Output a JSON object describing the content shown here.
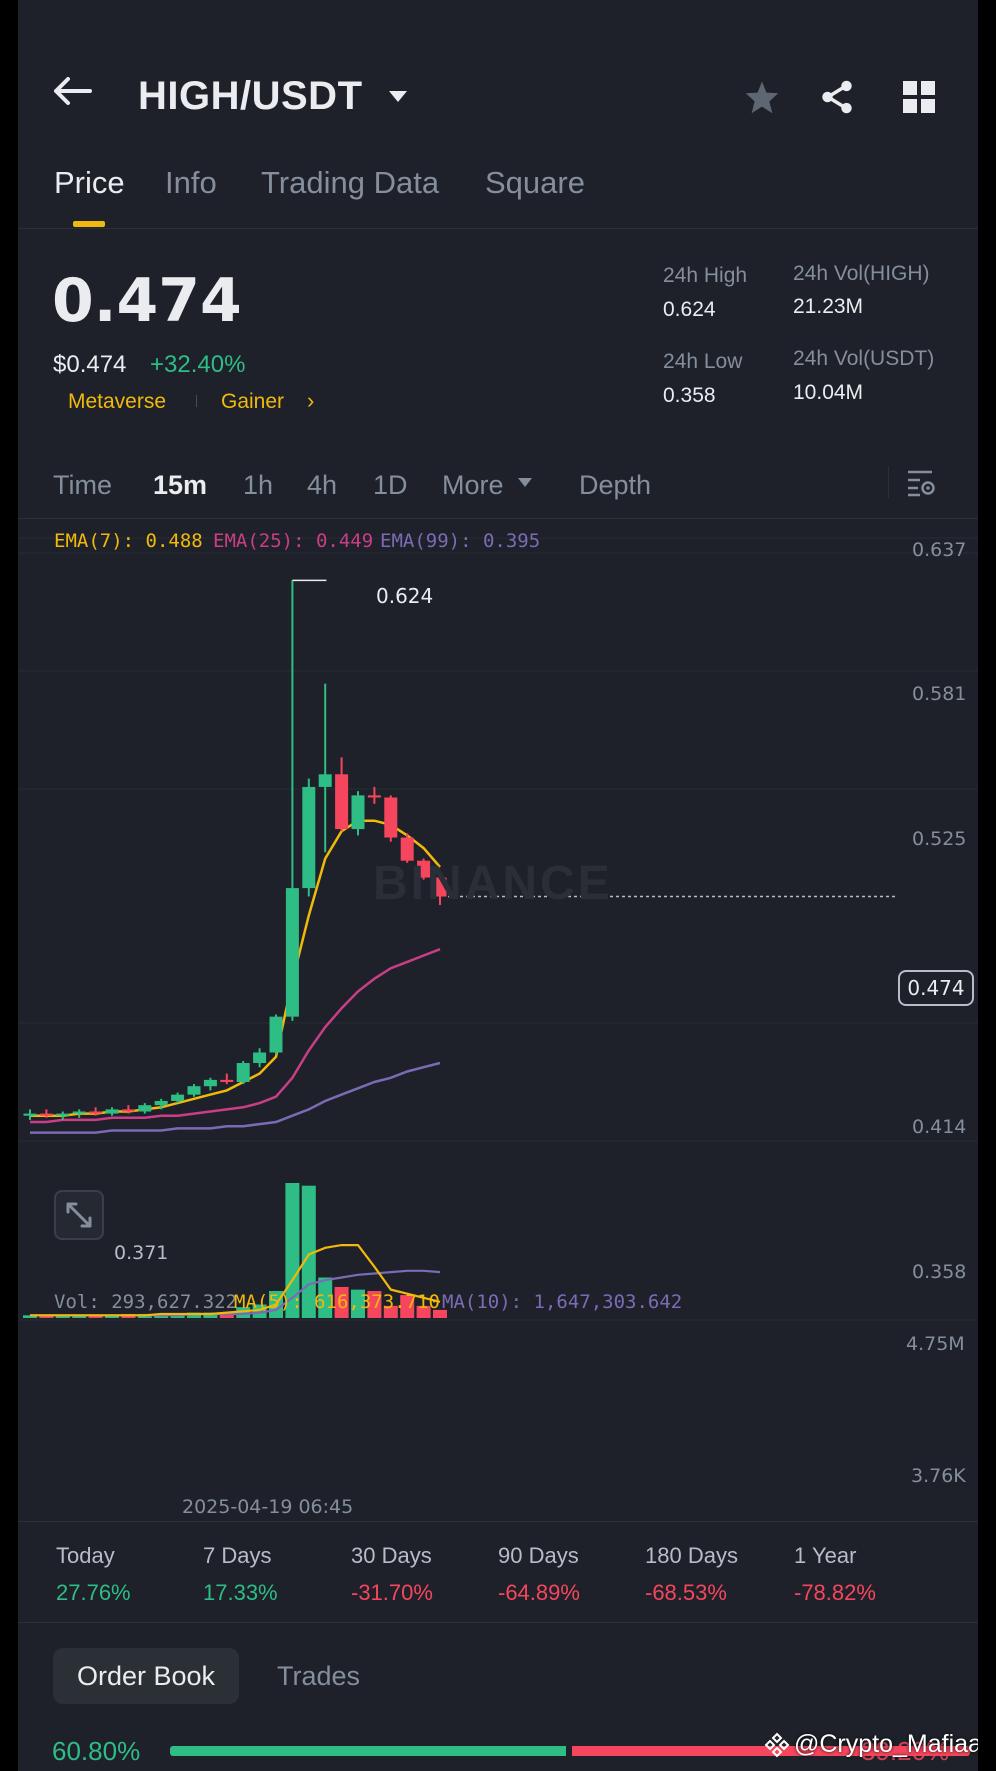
{
  "header": {
    "pair": "HIGH/USDT"
  },
  "tabs": [
    {
      "label": "Price"
    },
    {
      "label": "Info"
    },
    {
      "label": "Trading Data"
    },
    {
      "label": "Square"
    }
  ],
  "ticker": {
    "price": "0.474",
    "usd_price": "$0.474",
    "change": "+32.40%",
    "tags": [
      "Metaverse",
      "Gainer"
    ],
    "high_label": "24h High",
    "high_value": "0.624",
    "low_label": "24h Low",
    "low_value": "0.358",
    "vol_base_label": "24h Vol(HIGH)",
    "vol_base_value": "21.23M",
    "vol_quote_label": "24h Vol(USDT)",
    "vol_quote_value": "10.04M"
  },
  "intervals": {
    "items": [
      "Time",
      "15m",
      "1h",
      "4h",
      "1D"
    ],
    "selected": "15m",
    "more": "More",
    "depth": "Depth"
  },
  "indicators": {
    "ema7": "EMA(7): 0.488",
    "ema25": "EMA(25): 0.449",
    "ema99": "EMA(99): 0.395",
    "vol": "Vol: 293,627.322",
    "ma5": "MA(5): 616,373.710",
    "ma10": "MA(10): 1,647,303.642"
  },
  "colors": {
    "up": "#2ebd85",
    "down": "#f6465d",
    "ema7": "#f0b90b",
    "ema25": "#c93e86",
    "ema99": "#7b6bb5",
    "accent": "#f0b90b"
  },
  "chart_data": {
    "type": "candlestick",
    "price_axis_ticks": [
      "0.637",
      "0.581",
      "0.525",
      "0.414",
      "0.358"
    ],
    "volume_axis_ticks": [
      "4.75M",
      "3.76K"
    ],
    "high_marker": "0.624",
    "low_marker": "0.371",
    "current_price_tag": "0.474",
    "time_label": "2025-04-19 06:45",
    "ylim": [
      0.358,
      0.637
    ],
    "candles": [
      {
        "o": 0.37,
        "h": 0.373,
        "l": 0.368,
        "c": 0.371,
        "v": 0.02
      },
      {
        "o": 0.371,
        "h": 0.373,
        "l": 0.369,
        "c": 0.37,
        "v": 0.02
      },
      {
        "o": 0.37,
        "h": 0.372,
        "l": 0.368,
        "c": 0.371,
        "v": 0.02
      },
      {
        "o": 0.371,
        "h": 0.373,
        "l": 0.369,
        "c": 0.372,
        "v": 0.02
      },
      {
        "o": 0.372,
        "h": 0.374,
        "l": 0.37,
        "c": 0.371,
        "v": 0.02
      },
      {
        "o": 0.371,
        "h": 0.374,
        "l": 0.37,
        "c": 0.373,
        "v": 0.02
      },
      {
        "o": 0.373,
        "h": 0.375,
        "l": 0.371,
        "c": 0.372,
        "v": 0.03
      },
      {
        "o": 0.372,
        "h": 0.376,
        "l": 0.371,
        "c": 0.375,
        "v": 0.03
      },
      {
        "o": 0.375,
        "h": 0.378,
        "l": 0.373,
        "c": 0.377,
        "v": 0.03
      },
      {
        "o": 0.377,
        "h": 0.381,
        "l": 0.376,
        "c": 0.38,
        "v": 0.03
      },
      {
        "o": 0.38,
        "h": 0.385,
        "l": 0.379,
        "c": 0.384,
        "v": 0.04
      },
      {
        "o": 0.384,
        "h": 0.388,
        "l": 0.382,
        "c": 0.387,
        "v": 0.04
      },
      {
        "o": 0.387,
        "h": 0.39,
        "l": 0.385,
        "c": 0.386,
        "v": 0.04
      },
      {
        "o": 0.386,
        "h": 0.396,
        "l": 0.385,
        "c": 0.395,
        "v": 0.08
      },
      {
        "o": 0.395,
        "h": 0.402,
        "l": 0.393,
        "c": 0.4,
        "v": 0.1
      },
      {
        "o": 0.4,
        "h": 0.418,
        "l": 0.399,
        "c": 0.417,
        "v": 0.2
      },
      {
        "o": 0.417,
        "h": 0.624,
        "l": 0.415,
        "c": 0.478,
        "v": 1.0
      },
      {
        "o": 0.478,
        "h": 0.53,
        "l": 0.474,
        "c": 0.526,
        "v": 0.98
      },
      {
        "o": 0.526,
        "h": 0.575,
        "l": 0.495,
        "c": 0.532,
        "v": 0.3
      },
      {
        "o": 0.532,
        "h": 0.54,
        "l": 0.505,
        "c": 0.506,
        "v": 0.23
      },
      {
        "o": 0.506,
        "h": 0.524,
        "l": 0.503,
        "c": 0.522,
        "v": 0.21
      },
      {
        "o": 0.522,
        "h": 0.526,
        "l": 0.518,
        "c": 0.521,
        "v": 0.2
      },
      {
        "o": 0.521,
        "h": 0.522,
        "l": 0.5,
        "c": 0.502,
        "v": 0.09
      },
      {
        "o": 0.502,
        "h": 0.504,
        "l": 0.49,
        "c": 0.491,
        "v": 0.17
      },
      {
        "o": 0.491,
        "h": 0.492,
        "l": 0.482,
        "c": 0.483,
        "v": 0.09
      },
      {
        "o": 0.483,
        "h": 0.484,
        "l": 0.47,
        "c": 0.474,
        "v": 0.06
      }
    ],
    "ema7": [
      0.37,
      0.37,
      0.37,
      0.371,
      0.371,
      0.372,
      0.372,
      0.373,
      0.374,
      0.376,
      0.378,
      0.38,
      0.382,
      0.386,
      0.39,
      0.398,
      0.434,
      0.465,
      0.492,
      0.505,
      0.51,
      0.51,
      0.508,
      0.503,
      0.497,
      0.488
    ],
    "ema25": [
      0.367,
      0.367,
      0.368,
      0.368,
      0.368,
      0.369,
      0.369,
      0.369,
      0.37,
      0.37,
      0.371,
      0.372,
      0.373,
      0.374,
      0.376,
      0.379,
      0.388,
      0.401,
      0.412,
      0.421,
      0.429,
      0.435,
      0.44,
      0.443,
      0.446,
      0.449
    ],
    "ema99": [
      0.362,
      0.362,
      0.362,
      0.362,
      0.362,
      0.363,
      0.363,
      0.363,
      0.363,
      0.364,
      0.364,
      0.364,
      0.365,
      0.365,
      0.366,
      0.367,
      0.37,
      0.373,
      0.377,
      0.38,
      0.383,
      0.386,
      0.388,
      0.391,
      0.393,
      0.395
    ],
    "vol_ma5": [
      0.02,
      0.02,
      0.02,
      0.02,
      0.02,
      0.02,
      0.02,
      0.02,
      0.03,
      0.03,
      0.03,
      0.03,
      0.04,
      0.05,
      0.06,
      0.1,
      0.28,
      0.47,
      0.52,
      0.54,
      0.54,
      0.38,
      0.21,
      0.18,
      0.15,
      0.12
    ],
    "vol_ma10": [
      0.02,
      0.02,
      0.02,
      0.02,
      0.02,
      0.02,
      0.02,
      0.02,
      0.02,
      0.02,
      0.03,
      0.03,
      0.03,
      0.03,
      0.04,
      0.06,
      0.15,
      0.25,
      0.28,
      0.3,
      0.32,
      0.33,
      0.34,
      0.35,
      0.35,
      0.34
    ]
  },
  "performance": [
    {
      "label": "Today",
      "value": "27.76%",
      "dir": "up"
    },
    {
      "label": "7 Days",
      "value": "17.33%",
      "dir": "up"
    },
    {
      "label": "30 Days",
      "value": "-31.70%",
      "dir": "down"
    },
    {
      "label": "90 Days",
      "value": "-64.89%",
      "dir": "down"
    },
    {
      "label": "180 Days",
      "value": "-68.53%",
      "dir": "down"
    },
    {
      "label": "1 Year",
      "value": "-78.82%",
      "dir": "down"
    }
  ],
  "orderbook": {
    "tab_orderbook": "Order Book",
    "tab_trades": "Trades",
    "bid_percent": "60.80%",
    "bid_ratio": 0.608,
    "ask_percent_partial": "39.20%"
  },
  "watermark": {
    "credit": "@Crypto_Mafiaa",
    "exchange": "BINANCE"
  }
}
